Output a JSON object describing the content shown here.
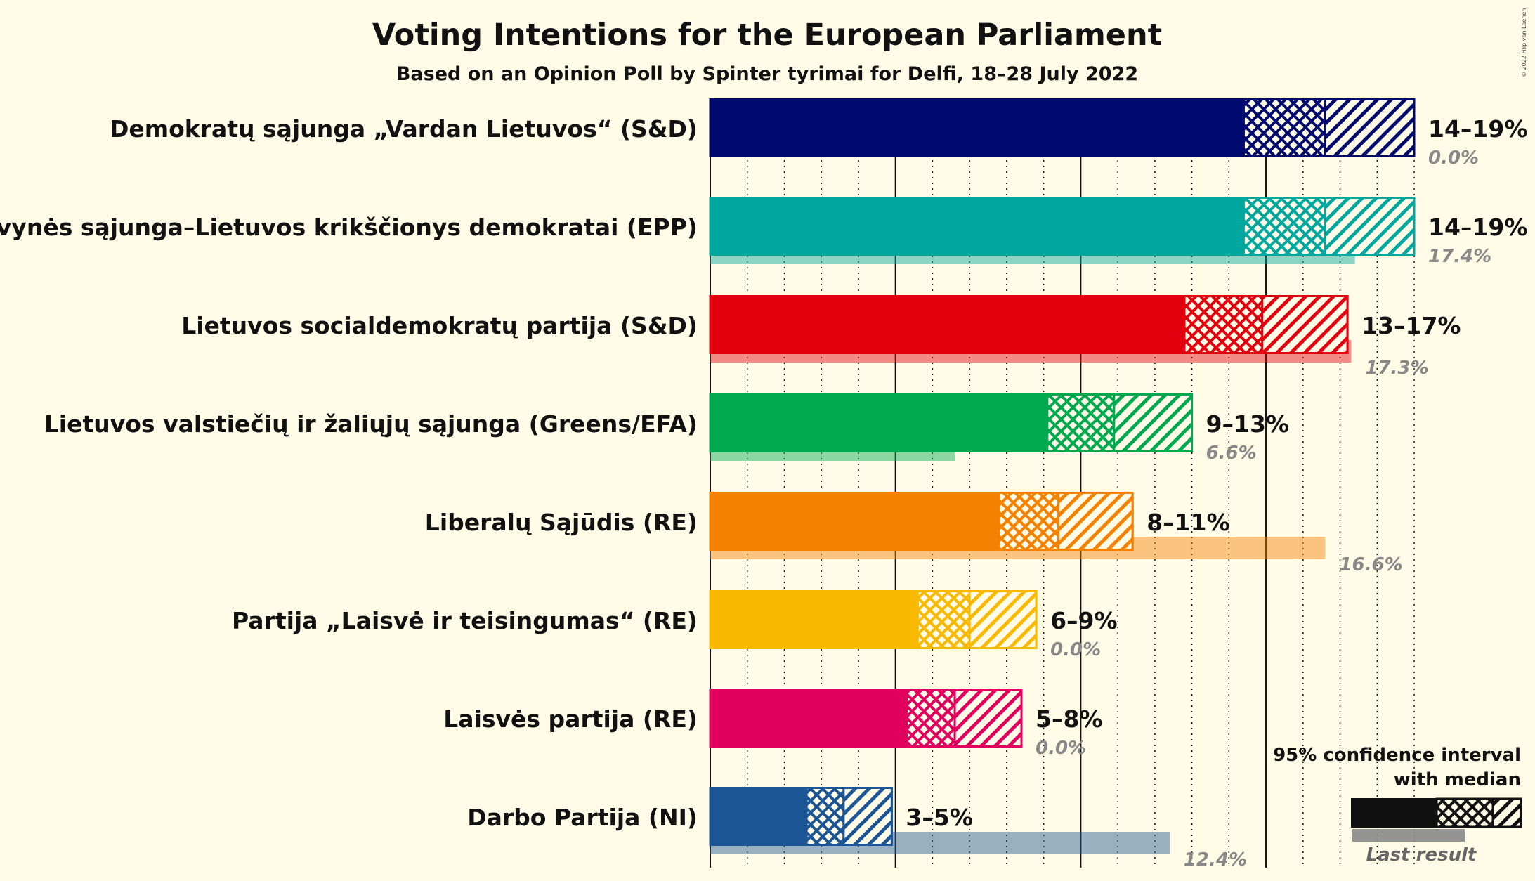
{
  "chart_data": {
    "type": "bar",
    "title": "Voting Intentions for the European Parliament",
    "subtitle": "Based on an Opinion Poll by Spinter tyrimai for Delfi, 18–28 July 2022",
    "copyright": "© 2022 Filip van Laenen",
    "xlim": [
      0,
      19
    ],
    "gridlines": {
      "solid_every": 5,
      "dotted_every": 1
    },
    "legend": {
      "ci_title_line1": "95% confidence interval",
      "ci_title_line2": "with median",
      "last_result_label": "Last result",
      "placement": "bottom-right"
    },
    "series": [
      {
        "name": "Demokratų sąjunga „Vardan Lietuvos“ (S&D)",
        "color": "#000a6e",
        "low": 14.4,
        "median": 16.6,
        "high": 19.0,
        "range_label": "14–19%",
        "last": 0.0,
        "last_label": "0.0%"
      },
      {
        "name": "Tėvynės sąjunga–Lietuvos krikščionys demokratai (EPP)",
        "color": "#00a79e",
        "low": 14.4,
        "median": 16.6,
        "high": 19.0,
        "range_label": "14–19%",
        "last": 17.4,
        "last_label": "17.4%"
      },
      {
        "name": "Lietuvos socialdemokratų partija (S&D)",
        "color": "#e2000f",
        "low": 12.8,
        "median": 14.9,
        "high": 17.2,
        "range_label": "13–17%",
        "last": 17.3,
        "last_label": "17.3%"
      },
      {
        "name": "Lietuvos valstiečių ir žaliųjų sąjunga (Greens/EFA)",
        "color": "#00a850",
        "low": 9.1,
        "median": 10.9,
        "high": 13.0,
        "range_label": "9–13%",
        "last": 6.6,
        "last_label": "6.6%"
      },
      {
        "name": "Liberalų Sąjūdis (RE)",
        "color": "#f48100",
        "low": 7.8,
        "median": 9.4,
        "high": 11.4,
        "range_label": "8–11%",
        "last": 16.6,
        "last_label": "16.6%"
      },
      {
        "name": "Partija „Laisvė ir teisingumas“ (RE)",
        "color": "#f9b900",
        "low": 5.6,
        "median": 7.0,
        "high": 8.8,
        "range_label": "6–9%",
        "last": 0.0,
        "last_label": "0.0%"
      },
      {
        "name": "Laisvės partija (RE)",
        "color": "#e2005e",
        "low": 5.3,
        "median": 6.6,
        "high": 8.4,
        "range_label": "5–8%",
        "last": 0.0,
        "last_label": "0.0%"
      },
      {
        "name": "Darbo Partija (NI)",
        "color": "#1c5595",
        "low": 2.6,
        "median": 3.6,
        "high": 4.9,
        "range_label": "3–5%",
        "last": 12.4,
        "last_label": "12.4%"
      }
    ]
  }
}
